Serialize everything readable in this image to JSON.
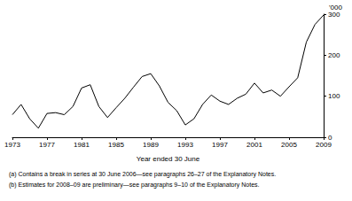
{
  "chart_data": {
    "type": "line",
    "x_label": "Year ended 30 June",
    "y_label": "'000",
    "annotations": [
      "(a) Contains a break in series at 30 June 2006—see paragraphs 26–27 of the Explanatory Notes.",
      "(b) Estimates for 2008–09 are preliminary—see paragraphs 9–10 of the Explanatory Notes."
    ],
    "x": [
      1973,
      1974,
      1975,
      1976,
      1977,
      1978,
      1979,
      1980,
      1981,
      1982,
      1983,
      1984,
      1985,
      1986,
      1987,
      1988,
      1989,
      1990,
      1991,
      1992,
      1993,
      1994,
      1995,
      1996,
      1997,
      1998,
      1999,
      2000,
      2001,
      2002,
      2003,
      2004,
      2005,
      2006,
      2007,
      2008,
      2009
    ],
    "values": [
      55,
      80,
      45,
      22,
      58,
      60,
      55,
      75,
      120,
      128,
      75,
      48,
      72,
      95,
      122,
      148,
      155,
      125,
      85,
      65,
      30,
      45,
      80,
      103,
      88,
      80,
      95,
      105,
      132,
      108,
      115,
      100,
      123,
      145,
      232,
      275,
      298
    ],
    "color": "#000000",
    "xlim": [
      1973,
      2009
    ],
    "xticks": [
      1973,
      1977,
      1981,
      1985,
      1989,
      1993,
      1997,
      2001,
      2005,
      2009
    ],
    "ylim": [
      0,
      300
    ],
    "yticks": [
      0,
      100,
      200,
      300
    ],
    "grid": false
  }
}
